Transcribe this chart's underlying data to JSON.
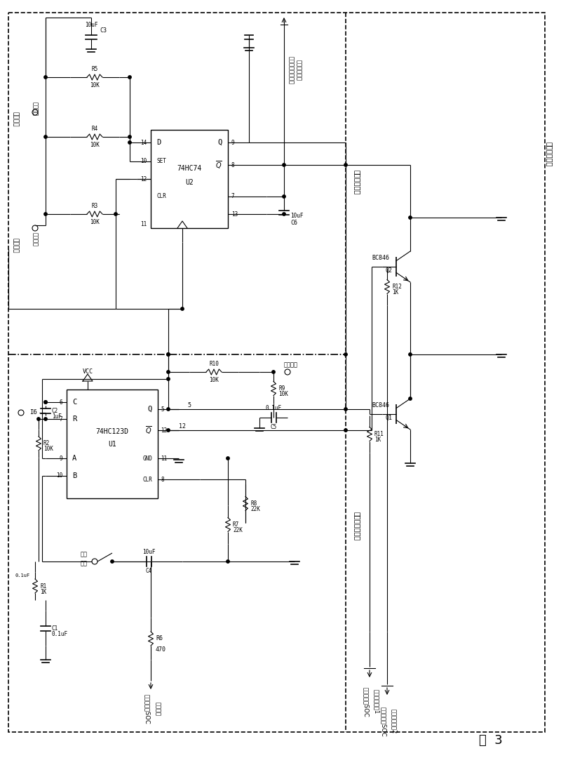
{
  "fig_w": 8.0,
  "fig_h": 10.8,
  "dpi": 100,
  "title": "图  3",
  "region_labels": {
    "top_label": "频转触发电路",
    "right_label": "隔离反相电路",
    "bottom_label": "单稳态触发电路"
  },
  "left_labels": {
    "standby": "待机电源",
    "on": "开机电源"
  },
  "components": {
    "C1": "0.1uF",
    "C2": "1uF",
    "C3": "10uF",
    "C4": "10uF",
    "C5": "0.1uF",
    "C6": "10uF",
    "R1": "1K",
    "R2": "10K",
    "R3": "10K",
    "R4": "10K",
    "R5": "10K",
    "R6": "470",
    "R7": "22K",
    "R8": "22K",
    "R9": "10K",
    "R10": "10K",
    "R11": "1K",
    "R12": "1K"
  },
  "annotations": {
    "sys_power": "接至系统电源电路",
    "sw_input": "开关控制输入",
    "standby_sw": "待机",
    "switch": "开关",
    "soc_int": "接至嵌入式SOC",
    "soc_int2": "中断输入",
    "soc_out1a": "接至嵌入式SOC",
    "soc_out1b": "通用输出信号1",
    "soc_out2a": "接至嵌入式SOC",
    "soc_out2b": "通用输出信号2"
  }
}
